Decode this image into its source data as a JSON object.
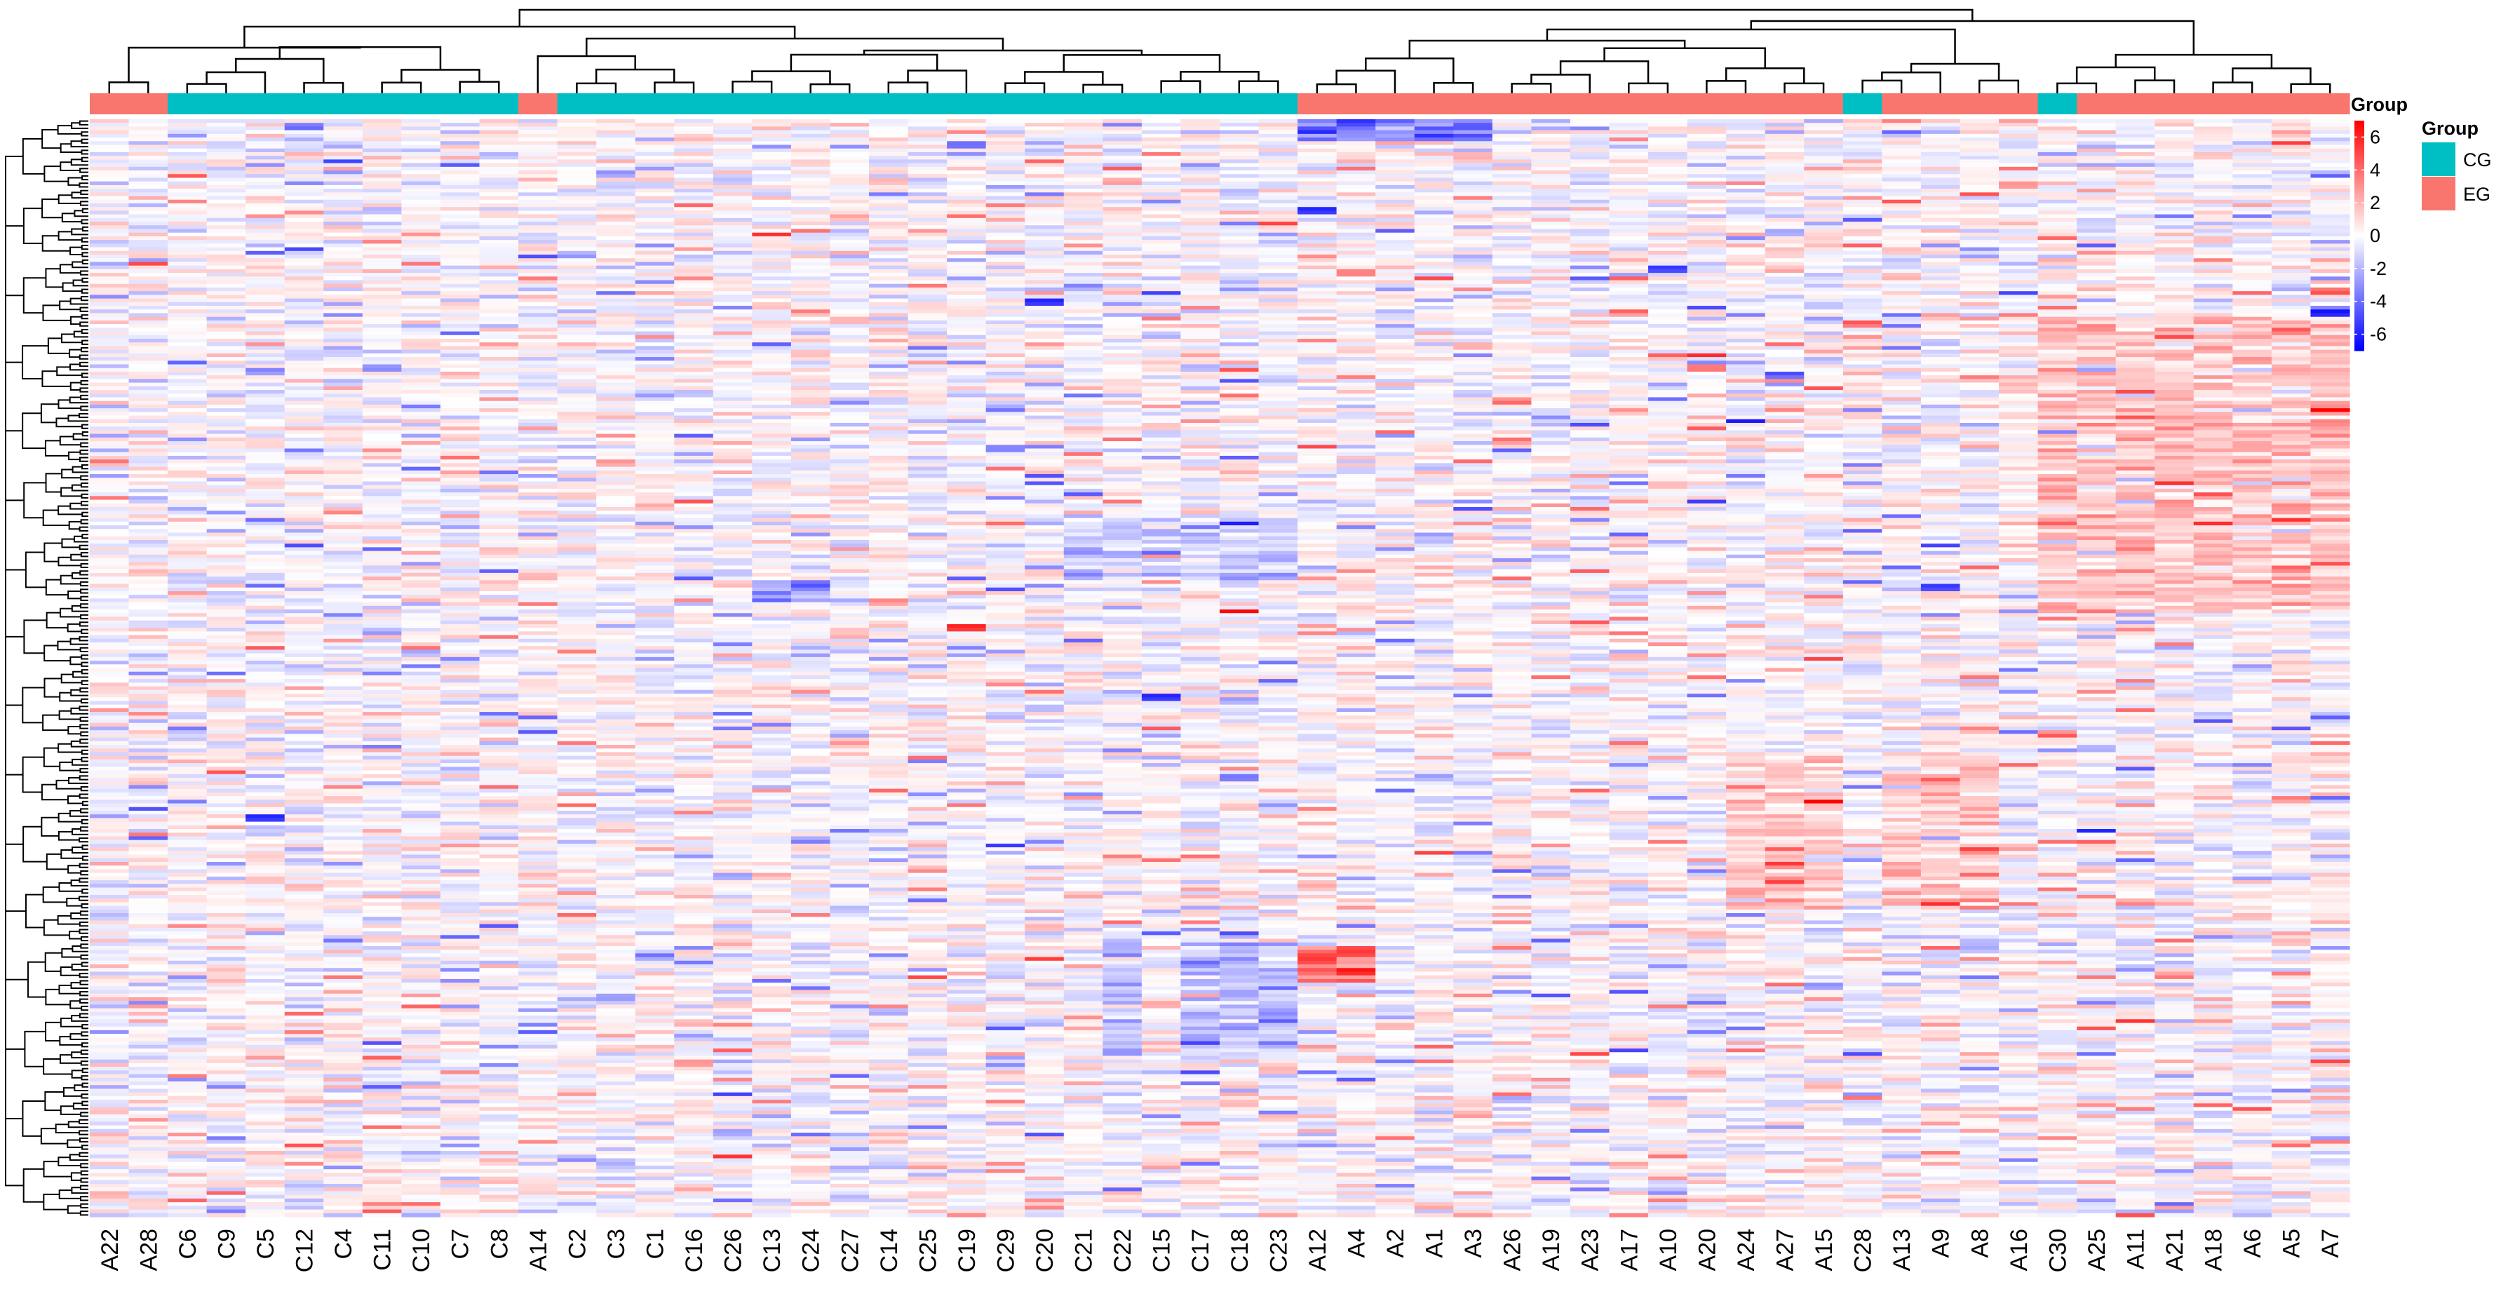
{
  "chart_data": {
    "type": "heatmap",
    "title": "",
    "columns": [
      "A22",
      "A28",
      "C6",
      "C9",
      "C5",
      "C12",
      "C4",
      "C11",
      "C10",
      "C7",
      "C8",
      "A14",
      "C2",
      "C3",
      "C1",
      "C16",
      "C26",
      "C13",
      "C24",
      "C27",
      "C14",
      "C25",
      "C19",
      "C29",
      "C20",
      "C21",
      "C22",
      "C15",
      "C17",
      "C18",
      "C23",
      "A12",
      "A4",
      "A2",
      "A1",
      "A3",
      "A26",
      "A19",
      "A23",
      "A17",
      "A10",
      "A20",
      "A24",
      "A27",
      "A15",
      "C28",
      "A13",
      "A9",
      "A8",
      "A16",
      "C30",
      "A25",
      "A11",
      "A21",
      "A18",
      "A6",
      "A5",
      "A7"
    ],
    "column_groups": [
      "EG",
      "EG",
      "CG",
      "CG",
      "CG",
      "CG",
      "CG",
      "CG",
      "CG",
      "CG",
      "CG",
      "EG",
      "CG",
      "CG",
      "CG",
      "CG",
      "CG",
      "CG",
      "CG",
      "CG",
      "CG",
      "CG",
      "CG",
      "CG",
      "CG",
      "CG",
      "CG",
      "CG",
      "CG",
      "CG",
      "CG",
      "EG",
      "EG",
      "EG",
      "EG",
      "EG",
      "EG",
      "EG",
      "EG",
      "EG",
      "EG",
      "EG",
      "EG",
      "EG",
      "EG",
      "CG",
      "EG",
      "EG",
      "EG",
      "EG",
      "CG",
      "EG",
      "EG",
      "EG",
      "EG",
      "EG",
      "EG",
      "EG"
    ],
    "row_count": 300,
    "value_range": [
      -7,
      7
    ],
    "colorbar": {
      "ticks": [
        6,
        4,
        2,
        0,
        -2,
        -4,
        -6
      ],
      "colors": [
        "#ff0000",
        "#ffffff",
        "#0000ff"
      ]
    },
    "highlights": [
      {
        "column": "C19",
        "row_fraction": 0.46,
        "value": 6.0
      },
      {
        "column": "A12",
        "row_fraction": 0.765,
        "value": 5.5
      },
      {
        "column": "A4",
        "row_fraction": 0.775,
        "value": 6.5
      },
      {
        "column": "C15",
        "row_fraction": 0.525,
        "value": -6.0
      },
      {
        "column": "C5",
        "row_fraction": 0.635,
        "value": -6.0
      },
      {
        "column": "A9",
        "row_fraction": 0.425,
        "value": -5.5
      },
      {
        "column": "C20",
        "row_fraction": 0.165,
        "value": -6.0
      },
      {
        "column": "A7",
        "row_fraction": 0.175,
        "value": -6.5
      },
      {
        "column": "A12",
        "row_fraction": 0.08,
        "value": -6.0
      },
      {
        "column": "A10",
        "row_fraction": 0.135,
        "value": -5.5
      }
    ],
    "cluster_bias": [
      {
        "columns": [
          "A12",
          "A4",
          "A2",
          "A1",
          "A3"
        ],
        "row_range": [
          0.0,
          0.02
        ],
        "value": -3.5
      },
      {
        "columns": [
          "A12",
          "A4"
        ],
        "row_range": [
          0.755,
          0.785
        ],
        "value": 4.5
      },
      {
        "columns": [
          "C30",
          "A25",
          "A11",
          "A21",
          "A18",
          "A6",
          "A5",
          "A7"
        ],
        "row_range": [
          0.18,
          0.45
        ],
        "value": 1.8
      },
      {
        "columns": [
          "C22",
          "C21",
          "C15",
          "C17",
          "C18",
          "C23"
        ],
        "row_range": [
          0.36,
          0.42
        ],
        "value": -1.5
      },
      {
        "columns": [
          "C17",
          "C18",
          "C23",
          "C22"
        ],
        "row_range": [
          0.75,
          0.85
        ],
        "value": -2.0
      },
      {
        "columns": [
          "A24",
          "A27",
          "A15",
          "A13",
          "A9",
          "A8"
        ],
        "row_range": [
          0.58,
          0.72
        ],
        "value": 1.5
      },
      {
        "columns": [
          "C13",
          "C24"
        ],
        "row_range": [
          0.42,
          0.44
        ],
        "value": -3.0
      }
    ]
  },
  "legend": {
    "colorbar_title": "Group",
    "group_title": "Group",
    "groups": [
      {
        "label": "CG",
        "color": "#00bfc4"
      },
      {
        "label": "EG",
        "color": "#f8766d"
      }
    ]
  },
  "colors": {
    "high": "#ff0000",
    "mid": "#ffffff",
    "low": "#0000ff"
  }
}
